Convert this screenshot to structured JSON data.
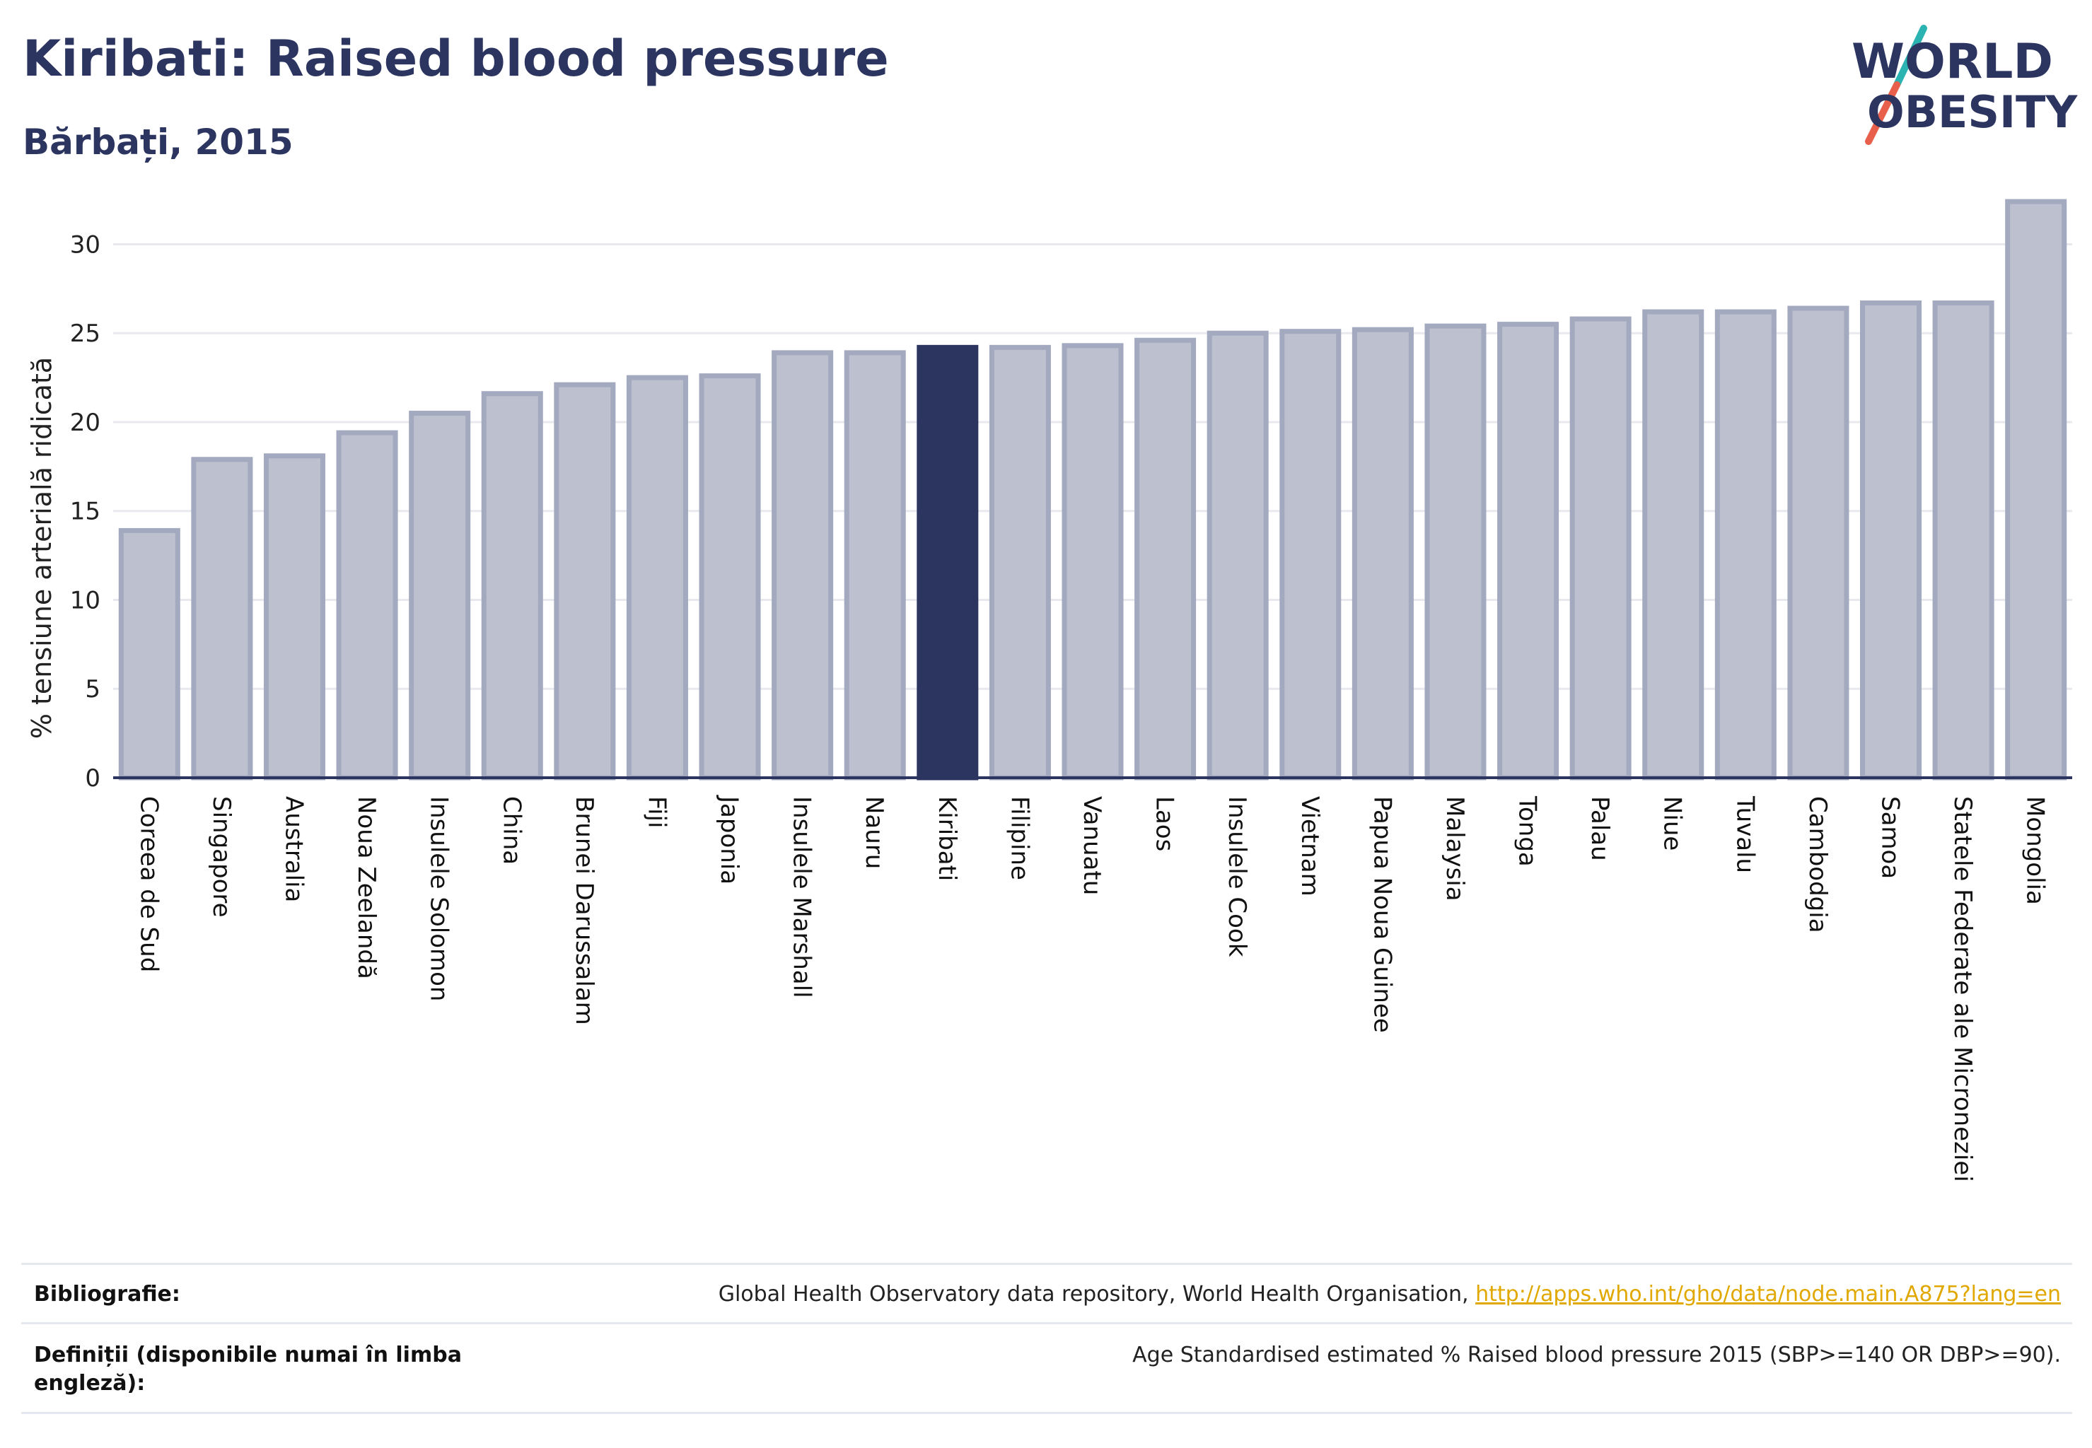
{
  "header": {
    "title": "Kiribati: Raised blood pressure",
    "subtitle": "Bărbați, 2015"
  },
  "logo": {
    "line1": "WORLD",
    "line2": "OBESITY",
    "colors": {
      "text": "#2b3560",
      "slash_teal": "#2bb3b1",
      "slash_red": "#e8604c"
    }
  },
  "chart_data": {
    "type": "bar",
    "title": "",
    "xlabel": "",
    "ylabel": "% tensiune arterială ridicată",
    "ylim": [
      0,
      33
    ],
    "yticks": [
      0,
      5,
      10,
      15,
      20,
      25,
      30
    ],
    "grid": true,
    "highlight": "Kiribati",
    "colors": {
      "bar": "#bcc0cf",
      "bar_border": "#a3a9bf",
      "highlight": "#2b3560",
      "axis": "#2b3560",
      "grid": "#e8e9ef"
    },
    "categories": [
      "Coreea de Sud",
      "Singapore",
      "Australia",
      "Noua Zeelandă",
      "Insulele Solomon",
      "China",
      "Brunei Darussalam",
      "Fiji",
      "Japonia",
      "Insulele Marshall",
      "Nauru",
      "Kiribati",
      "Filipine",
      "Vanuatu",
      "Laos",
      "Insulele Cook",
      "Vietnam",
      "Papua Noua Guinee",
      "Malaysia",
      "Tonga",
      "Palau",
      "Niue",
      "Tuvalu",
      "Cambodgia",
      "Samoa",
      "Statele Federate ale Microneziei",
      "Mongolia"
    ],
    "values": [
      13.9,
      17.9,
      18.1,
      19.4,
      20.5,
      21.6,
      22.1,
      22.5,
      22.6,
      23.9,
      23.9,
      24.2,
      24.2,
      24.3,
      24.6,
      25.0,
      25.1,
      25.2,
      25.4,
      25.5,
      25.8,
      26.2,
      26.2,
      26.4,
      26.7,
      26.7,
      32.4
    ]
  },
  "references": {
    "bibliography_label": "Bibliografie:",
    "bibliography_text": "Global Health Observatory data repository, World Health Organisation,",
    "bibliography_link": "http://apps.who.int/gho/data/node.main.A875?lang=en",
    "definitions_label": "Definiții (disponibile numai în limba engleză):",
    "definitions_text": "Age Standardised estimated % Raised blood pressure 2015 (SBP>=140 OR DBP>=90)."
  }
}
